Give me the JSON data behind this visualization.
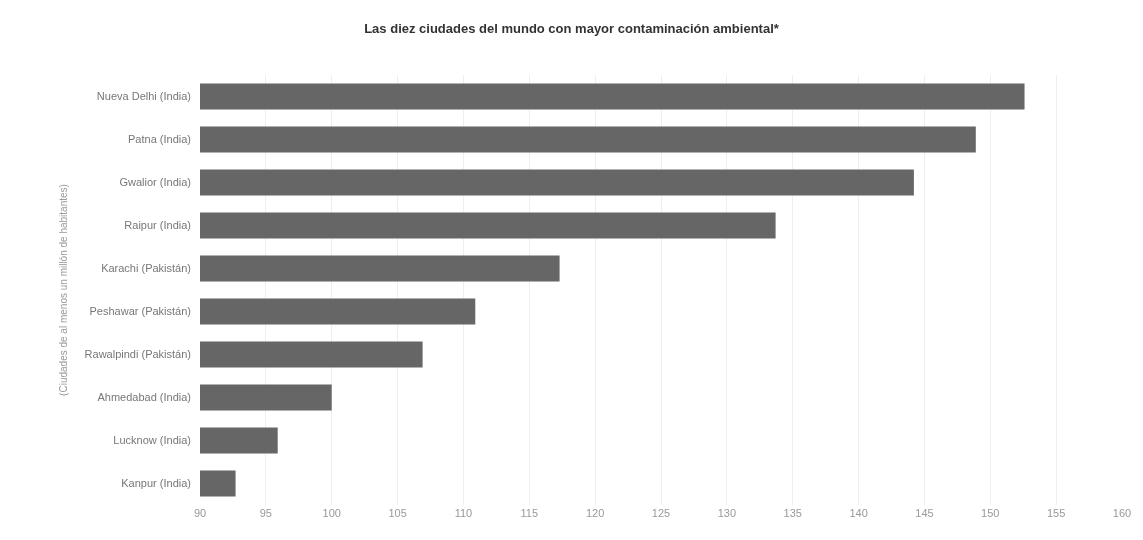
{
  "chart_data": {
    "type": "bar",
    "orientation": "horizontal",
    "title": "Las diez ciudades del mundo con mayor contaminación ambiental*",
    "ylabel": "(Ciudades de al menos un millón de habitantes)",
    "categories": [
      "Nueva Delhi (India)",
      "Patna (India)",
      "Gwalior (India)",
      "Raipur (India)",
      "Karachi (Pakistán)",
      "Peshawar (Pakistán)",
      "Rawalpindi (Pakistán)",
      "Ahmedabad (India)",
      "Lucknow (India)",
      "Kanpur (India)"
    ],
    "values": [
      152.6,
      148.9,
      144.2,
      133.7,
      117.3,
      110.9,
      106.9,
      100,
      95.9,
      92.7
    ],
    "color": "#666666",
    "xlim": [
      90,
      160
    ],
    "xticks": [
      90,
      95,
      100,
      105,
      110,
      115,
      120,
      125,
      130,
      135,
      140,
      145,
      150,
      155,
      160
    ],
    "grid": "x"
  }
}
